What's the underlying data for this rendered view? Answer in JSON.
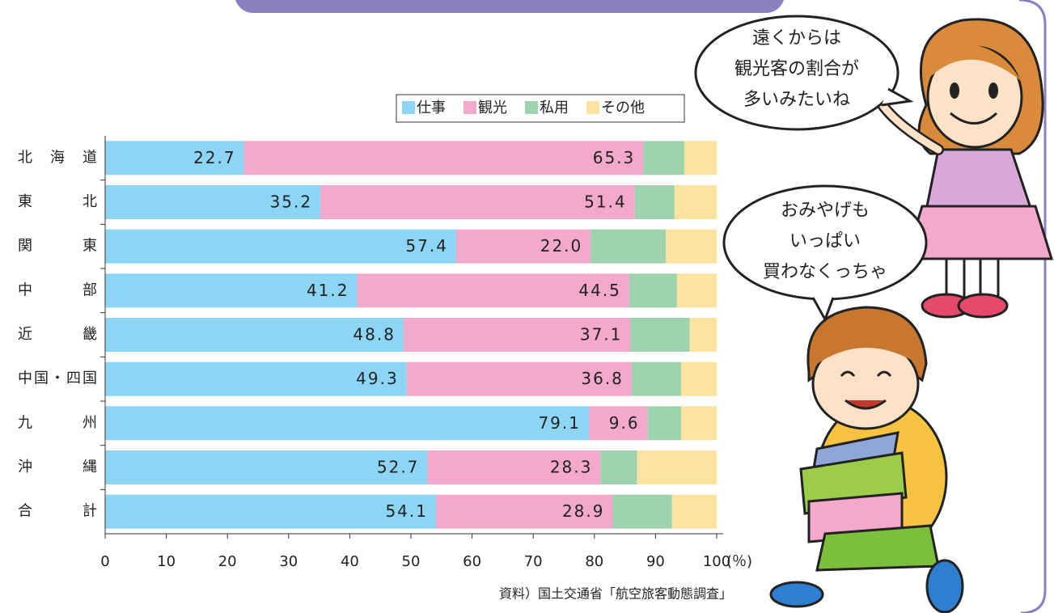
{
  "chart_data": {
    "type": "bar",
    "orientation": "horizontal",
    "stacked": true,
    "categories": [
      "北海道",
      "東北",
      "関東",
      "中部",
      "近畿",
      "中国・四国",
      "九州",
      "沖縄",
      "合計"
    ],
    "series": [
      {
        "name": "仕事",
        "color": "#8dd5f5",
        "values": [
          22.7,
          35.2,
          57.4,
          41.2,
          48.8,
          49.3,
          79.1,
          52.7,
          54.1
        ],
        "value_labels": [
          "22.7",
          "35.2",
          "57.4",
          "41.2",
          "48.8",
          "49.3",
          "79.1",
          "52.7",
          "54.1"
        ]
      },
      {
        "name": "観光",
        "color": "#f4a8cc",
        "values": [
          65.3,
          51.4,
          22.0,
          44.5,
          37.1,
          36.8,
          9.6,
          28.3,
          28.9
        ],
        "value_labels": [
          "65.3",
          "51.4",
          "22.0",
          "44.5",
          "37.1",
          "36.8",
          "9.6",
          "28.3",
          "28.9"
        ]
      },
      {
        "name": "私用",
        "color": "#9dd4ae",
        "values": [
          6.7,
          6.5,
          12.3,
          7.8,
          9.7,
          8.1,
          5.5,
          6.0,
          9.7
        ]
      },
      {
        "name": "その他",
        "color": "#fde3a0",
        "values": [
          5.3,
          6.9,
          8.3,
          6.5,
          4.4,
          5.8,
          5.8,
          13.0,
          7.3
        ]
      }
    ],
    "xlim": [
      0,
      100
    ],
    "xticks": [
      0,
      10,
      20,
      30,
      40,
      50,
      60,
      70,
      80,
      90,
      100
    ],
    "x_unit": "(％)",
    "source": "資料）国土交通省「航空旅客動態調査」",
    "legend": "top-right",
    "annotations": [
      [
        "遠くからは",
        "観光客の割合が",
        "多いみたいね"
      ],
      [
        "おみやげも",
        "いっぱい",
        "買わなくっちゃ"
      ]
    ]
  }
}
